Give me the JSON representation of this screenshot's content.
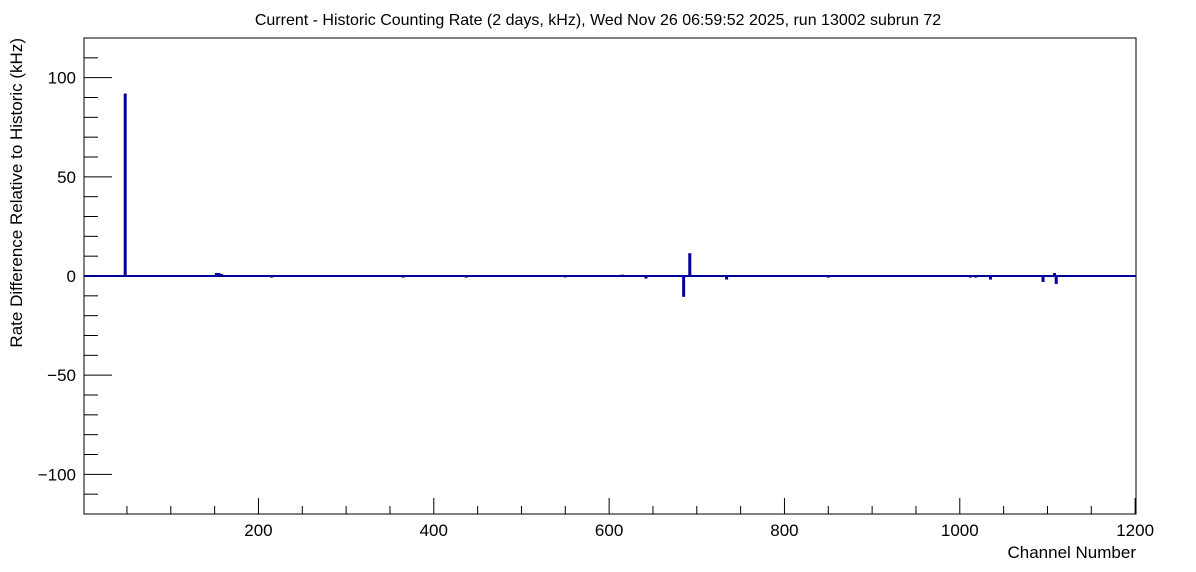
{
  "chart_data": {
    "type": "bar",
    "title": "Current - Historic Counting Rate (2 days, kHz), Wed Nov 26 06:59:52 2025, run 13002 subrun 72",
    "xlabel": "Channel Number",
    "ylabel": "Rate Difference Relative to Historic (kHz)",
    "xlim": [
      1,
      1201
    ],
    "ylim": [
      -120,
      120
    ],
    "x_ticks": [
      200,
      400,
      600,
      800,
      1000,
      1200
    ],
    "y_ticks": [
      -100,
      -50,
      0,
      50,
      100
    ],
    "grid": false,
    "legend": "none",
    "series": [
      {
        "color": "#000099",
        "points": [
          {
            "x": 48,
            "y": 92
          },
          {
            "x": 152,
            "y": 1.5
          },
          {
            "x": 155,
            "y": 1.5
          },
          {
            "x": 158,
            "y": 1
          },
          {
            "x": 215,
            "y": -0.8
          },
          {
            "x": 365,
            "y": -0.8
          },
          {
            "x": 437,
            "y": -0.8
          },
          {
            "x": 550,
            "y": -0.7
          },
          {
            "x": 615,
            "y": 0.7
          },
          {
            "x": 642,
            "y": -1.3
          },
          {
            "x": 685,
            "y": -10.5
          },
          {
            "x": 692,
            "y": 11.5
          },
          {
            "x": 734,
            "y": -1.8
          },
          {
            "x": 850,
            "y": -0.8
          },
          {
            "x": 1012,
            "y": -0.8
          },
          {
            "x": 1018,
            "y": -0.8
          },
          {
            "x": 1035,
            "y": -1.8
          },
          {
            "x": 1095,
            "y": -3
          },
          {
            "x": 1108,
            "y": 1.5
          },
          {
            "x": 1110,
            "y": -4
          },
          {
            "x": 1150,
            "y": -0.5
          },
          {
            "x": 1195,
            "y": -0.5
          }
        ]
      }
    ]
  }
}
